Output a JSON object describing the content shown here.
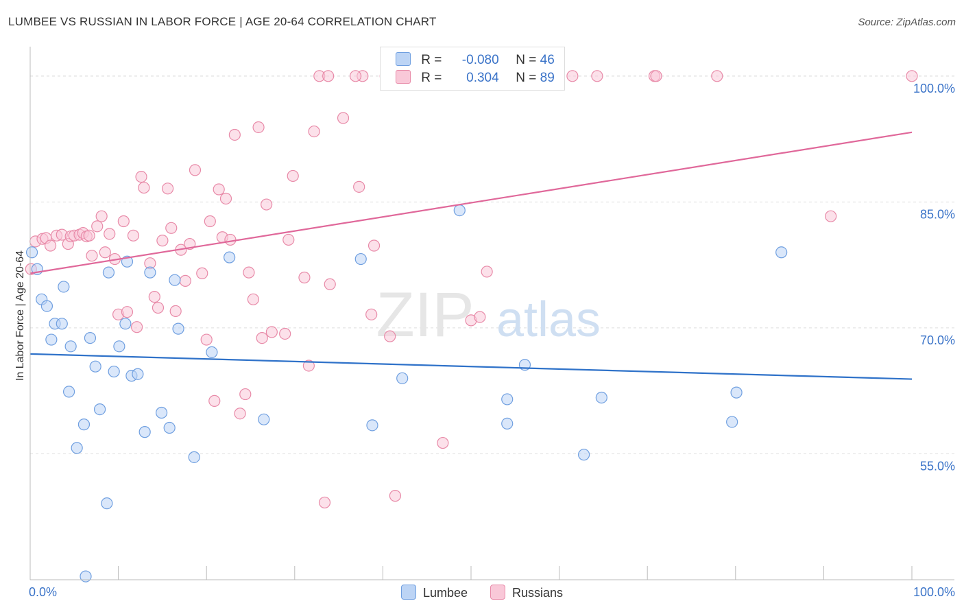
{
  "title": "LUMBEE VS RUSSIAN IN LABOR FORCE | AGE 20-64 CORRELATION CHART",
  "source": "Source: ZipAtlas.com",
  "watermark": {
    "zip": "ZIP",
    "atlas": "atlas"
  },
  "legend": {
    "rows": [
      {
        "r_label": "R =",
        "r_value": "-0.080",
        "n_label": "N =",
        "n_value": "46"
      },
      {
        "r_label": "R =",
        "r_value": "0.304",
        "n_label": "N =",
        "n_value": "89"
      }
    ]
  },
  "bottom_legend": {
    "lumbee": "Lumbee",
    "russians": "Russians"
  },
  "colors": {
    "lumbee_fill": "#bcd4f5",
    "lumbee_stroke": "#6f9fe0",
    "lumbee_line": "#2f72c9",
    "russians_fill": "#f9c8d8",
    "russians_stroke": "#e88aa8",
    "russians_line": "#e0689a",
    "tick_label": "#3a73c8",
    "grid": "#dddddd"
  },
  "chart_data": {
    "type": "scatter",
    "title": "LUMBEE VS RUSSIAN IN LABOR FORCE | AGE 20-64 CORRELATION CHART",
    "xlabel": "",
    "ylabel": "In Labor Force | Age 20-64",
    "xlim": [
      0,
      100
    ],
    "ylim": [
      40,
      103.5
    ],
    "x_tick_labels": [
      "0.0%",
      "100.0%"
    ],
    "y_ticks": [
      55,
      70,
      85,
      100
    ],
    "y_tick_labels": [
      "55.0%",
      "70.0%",
      "85.0%",
      "100.0%"
    ],
    "grid": true,
    "legend_position": "top-center",
    "series": [
      {
        "name": "Lumbee",
        "color": "#6f9fe0",
        "r": -0.08,
        "n": 46,
        "trend": {
          "x": [
            0,
            100
          ],
          "y": [
            66.9,
            63.9
          ]
        },
        "points": [
          [
            0.2,
            79.0
          ],
          [
            0.8,
            77.0
          ],
          [
            1.3,
            73.4
          ],
          [
            1.9,
            72.6
          ],
          [
            2.4,
            68.6
          ],
          [
            2.8,
            70.5
          ],
          [
            3.6,
            70.5
          ],
          [
            3.8,
            74.9
          ],
          [
            4.6,
            67.8
          ],
          [
            4.4,
            62.4
          ],
          [
            5.3,
            55.7
          ],
          [
            6.1,
            58.5
          ],
          [
            6.8,
            68.8
          ],
          [
            7.4,
            65.4
          ],
          [
            7.9,
            60.3
          ],
          [
            8.7,
            49.1
          ],
          [
            8.9,
            76.6
          ],
          [
            9.5,
            64.8
          ],
          [
            10.1,
            67.8
          ],
          [
            10.8,
            70.5
          ],
          [
            11.0,
            77.9
          ],
          [
            11.5,
            64.3
          ],
          [
            12.2,
            64.5
          ],
          [
            13.0,
            57.6
          ],
          [
            13.6,
            76.6
          ],
          [
            14.9,
            59.9
          ],
          [
            15.8,
            58.1
          ],
          [
            16.4,
            75.7
          ],
          [
            16.8,
            69.9
          ],
          [
            18.6,
            54.6
          ],
          [
            20.6,
            67.1
          ],
          [
            22.6,
            78.4
          ],
          [
            26.5,
            59.1
          ],
          [
            37.5,
            78.2
          ],
          [
            38.8,
            58.4
          ],
          [
            42.2,
            64.0
          ],
          [
            48.7,
            84.0
          ],
          [
            56.1,
            65.6
          ],
          [
            54.1,
            61.5
          ],
          [
            54.1,
            58.6
          ],
          [
            62.8,
            54.9
          ],
          [
            64.8,
            61.7
          ],
          [
            79.6,
            58.8
          ],
          [
            80.1,
            62.3
          ],
          [
            85.2,
            79.0
          ],
          [
            6.3,
            40.4
          ]
        ]
      },
      {
        "name": "Russians",
        "color": "#e88aa8",
        "r": 0.304,
        "n": 89,
        "trend": {
          "x": [
            0,
            100
          ],
          "y": [
            76.5,
            93.3
          ]
        },
        "points": [
          [
            0.1,
            77.0
          ],
          [
            0.6,
            80.3
          ],
          [
            1.4,
            80.6
          ],
          [
            1.8,
            80.7
          ],
          [
            2.3,
            79.8
          ],
          [
            3.0,
            81.0
          ],
          [
            3.6,
            81.1
          ],
          [
            4.3,
            80.0
          ],
          [
            4.6,
            80.9
          ],
          [
            5.0,
            81.0
          ],
          [
            5.6,
            81.1
          ],
          [
            6.0,
            81.3
          ],
          [
            6.4,
            80.9
          ],
          [
            6.7,
            81.0
          ],
          [
            7.0,
            78.6
          ],
          [
            7.6,
            82.1
          ],
          [
            8.1,
            83.3
          ],
          [
            8.5,
            79.0
          ],
          [
            9.0,
            81.2
          ],
          [
            9.6,
            78.2
          ],
          [
            10.0,
            71.6
          ],
          [
            10.6,
            82.7
          ],
          [
            11.0,
            71.9
          ],
          [
            11.7,
            81.0
          ],
          [
            12.1,
            70.1
          ],
          [
            12.6,
            88.0
          ],
          [
            12.9,
            86.7
          ],
          [
            13.6,
            77.7
          ],
          [
            14.1,
            73.7
          ],
          [
            14.5,
            72.4
          ],
          [
            15.0,
            80.4
          ],
          [
            15.6,
            86.6
          ],
          [
            16.0,
            81.9
          ],
          [
            16.5,
            72.0
          ],
          [
            17.1,
            79.3
          ],
          [
            17.6,
            75.6
          ],
          [
            18.1,
            80.0
          ],
          [
            18.7,
            88.8
          ],
          [
            19.5,
            76.5
          ],
          [
            20.0,
            68.6
          ],
          [
            20.4,
            82.7
          ],
          [
            20.9,
            61.3
          ],
          [
            21.4,
            86.5
          ],
          [
            21.8,
            80.8
          ],
          [
            22.2,
            85.4
          ],
          [
            22.7,
            80.5
          ],
          [
            23.2,
            93.0
          ],
          [
            23.8,
            59.8
          ],
          [
            24.4,
            62.1
          ],
          [
            24.8,
            76.6
          ],
          [
            25.3,
            73.4
          ],
          [
            25.9,
            93.9
          ],
          [
            26.3,
            68.8
          ],
          [
            26.8,
            84.7
          ],
          [
            27.4,
            69.5
          ],
          [
            28.9,
            69.3
          ],
          [
            29.3,
            80.5
          ],
          [
            29.8,
            88.1
          ],
          [
            31.1,
            76.0
          ],
          [
            31.6,
            65.5
          ],
          [
            32.2,
            93.4
          ],
          [
            32.8,
            100.0
          ],
          [
            33.4,
            49.2
          ],
          [
            33.8,
            100.0
          ],
          [
            34.0,
            75.2
          ],
          [
            35.5,
            95.0
          ],
          [
            37.3,
            86.8
          ],
          [
            37.7,
            100.0
          ],
          [
            38.7,
            71.6
          ],
          [
            39.0,
            79.8
          ],
          [
            40.3,
            100.0
          ],
          [
            40.8,
            69.0
          ],
          [
            41.4,
            50.0
          ],
          [
            42.1,
            100.0
          ],
          [
            46.8,
            56.3
          ],
          [
            50.0,
            70.9
          ],
          [
            51.0,
            71.3
          ],
          [
            51.8,
            76.7
          ],
          [
            57.0,
            100.0
          ],
          [
            59.2,
            100.0
          ],
          [
            61.5,
            100.0
          ],
          [
            64.3,
            100.0
          ],
          [
            70.8,
            100.0
          ],
          [
            71.0,
            100.0
          ],
          [
            77.9,
            100.0
          ],
          [
            90.8,
            83.3
          ],
          [
            100.0,
            100.0
          ],
          [
            44.2,
            100.0
          ],
          [
            36.9,
            100.0
          ]
        ]
      }
    ]
  }
}
